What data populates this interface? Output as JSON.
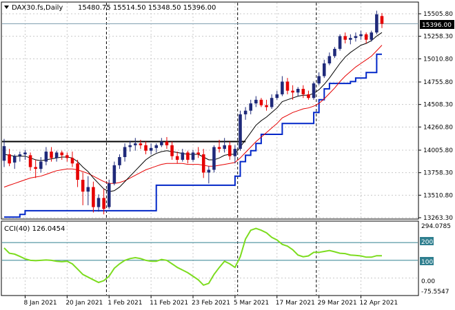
{
  "header": {
    "symbol": "DAX30.fs,Daily",
    "ohlc": "15480.75 15514.50 15348.50 15396.00"
  },
  "current_price_label": "15396.00",
  "indicator": {
    "label": "CCI(40) 126.0454",
    "max_label": "294.0785",
    "min_label": "-75.5547",
    "levels": [
      "200",
      "100",
      "0.00"
    ]
  },
  "colors": {
    "background": "#ffffff",
    "up_candle": "#1f2a7a",
    "down_candle": "#e60000",
    "fast_ma": "#000000",
    "slow_ma": "#e60000",
    "trailing_stop": "#0026c8",
    "cci": "#7cdc1e",
    "level_line": "#2f7f8f",
    "resistance": "#000000"
  },
  "chart_data": [
    {
      "type": "candlestick",
      "price_axis": [
        "15505.80",
        "15258.30",
        "15010.80",
        "14755.80",
        "14508.30",
        "14260.80",
        "14005.80",
        "13758.30",
        "13510.80",
        "13263.30"
      ],
      "ylim": [
        13263.3,
        15505.8
      ],
      "date_ticks": [
        "8 Jan 2021",
        "20 Jan 2021",
        "1 Feb 2021",
        "11 Feb 2021",
        "23 Feb 2021",
        "5 Mar 2021",
        "17 Mar 2021",
        "29 Mar 2021",
        "12 Apr 2021"
      ],
      "resistance_level": 14100,
      "last_price": 15396,
      "candles": [
        {
          "date": "2021-01-04",
          "o": 13890,
          "h": 14130,
          "l": 13820,
          "c": 14050
        },
        {
          "date": "2021-01-05",
          "o": 13960,
          "h": 14020,
          "l": 13830,
          "c": 13860
        },
        {
          "date": "2021-01-06",
          "o": 13870,
          "h": 13960,
          "l": 13800,
          "c": 13940
        },
        {
          "date": "2021-01-07",
          "o": 13940,
          "h": 13990,
          "l": 13880,
          "c": 13960
        },
        {
          "date": "2021-01-08",
          "o": 13960,
          "h": 14010,
          "l": 13900,
          "c": 13980
        },
        {
          "date": "2021-01-11",
          "o": 13950,
          "h": 13980,
          "l": 13780,
          "c": 13820
        },
        {
          "date": "2021-01-12",
          "o": 13820,
          "h": 13900,
          "l": 13700,
          "c": 13800
        },
        {
          "date": "2021-01-13",
          "o": 13800,
          "h": 13930,
          "l": 13760,
          "c": 13880
        },
        {
          "date": "2021-01-14",
          "o": 13880,
          "h": 14040,
          "l": 13840,
          "c": 13990
        },
        {
          "date": "2021-01-15",
          "o": 13990,
          "h": 14040,
          "l": 13880,
          "c": 13920
        },
        {
          "date": "2021-01-18",
          "o": 13920,
          "h": 14000,
          "l": 13880,
          "c": 13980
        },
        {
          "date": "2021-01-19",
          "o": 13980,
          "h": 14000,
          "l": 13900,
          "c": 13950
        },
        {
          "date": "2021-01-20",
          "o": 13950,
          "h": 13980,
          "l": 13880,
          "c": 13920
        },
        {
          "date": "2021-01-21",
          "o": 13920,
          "h": 13990,
          "l": 13820,
          "c": 13860
        },
        {
          "date": "2021-01-22",
          "o": 13860,
          "h": 13900,
          "l": 13600,
          "c": 13680
        },
        {
          "date": "2021-01-25",
          "o": 13680,
          "h": 13760,
          "l": 13400,
          "c": 13550
        },
        {
          "date": "2021-01-26",
          "o": 13550,
          "h": 13720,
          "l": 13400,
          "c": 13600
        },
        {
          "date": "2021-01-27",
          "o": 13600,
          "h": 13660,
          "l": 13320,
          "c": 13380
        },
        {
          "date": "2021-01-28",
          "o": 13380,
          "h": 13520,
          "l": 13330,
          "c": 13480
        },
        {
          "date": "2021-01-29",
          "o": 13480,
          "h": 13580,
          "l": 13300,
          "c": 13360
        },
        {
          "date": "2021-02-01",
          "o": 13380,
          "h": 13680,
          "l": 13360,
          "c": 13640
        },
        {
          "date": "2021-02-02",
          "o": 13640,
          "h": 13880,
          "l": 13620,
          "c": 13840
        },
        {
          "date": "2021-02-03",
          "o": 13840,
          "h": 13960,
          "l": 13800,
          "c": 13930
        },
        {
          "date": "2021-02-04",
          "o": 13930,
          "h": 14080,
          "l": 13880,
          "c": 14040
        },
        {
          "date": "2021-02-05",
          "o": 14040,
          "h": 14110,
          "l": 13990,
          "c": 14060
        },
        {
          "date": "2021-02-08",
          "o": 14060,
          "h": 14140,
          "l": 14000,
          "c": 14080
        },
        {
          "date": "2021-02-09",
          "o": 14080,
          "h": 14120,
          "l": 14020,
          "c": 14060
        },
        {
          "date": "2021-02-10",
          "o": 14060,
          "h": 14100,
          "l": 13960,
          "c": 14000
        },
        {
          "date": "2021-02-11",
          "o": 14000,
          "h": 14080,
          "l": 13960,
          "c": 14030
        },
        {
          "date": "2021-02-12",
          "o": 14030,
          "h": 14080,
          "l": 13980,
          "c": 14060
        },
        {
          "date": "2021-02-15",
          "o": 14060,
          "h": 14140,
          "l": 14040,
          "c": 14100
        },
        {
          "date": "2021-02-16",
          "o": 14100,
          "h": 14150,
          "l": 14020,
          "c": 14060
        },
        {
          "date": "2021-02-17",
          "o": 14060,
          "h": 14100,
          "l": 13900,
          "c": 13940
        },
        {
          "date": "2021-02-18",
          "o": 13940,
          "h": 13990,
          "l": 13860,
          "c": 13900
        },
        {
          "date": "2021-02-19",
          "o": 13900,
          "h": 14020,
          "l": 13880,
          "c": 13980
        },
        {
          "date": "2021-02-22",
          "o": 13980,
          "h": 14000,
          "l": 13860,
          "c": 13900
        },
        {
          "date": "2021-02-23",
          "o": 13900,
          "h": 14010,
          "l": 13880,
          "c": 13980
        },
        {
          "date": "2021-02-24",
          "o": 13980,
          "h": 14040,
          "l": 13920,
          "c": 13960
        },
        {
          "date": "2021-02-25",
          "o": 13960,
          "h": 14020,
          "l": 13700,
          "c": 13760
        },
        {
          "date": "2021-02-26",
          "o": 13760,
          "h": 13830,
          "l": 13640,
          "c": 13790
        },
        {
          "date": "2021-03-01",
          "o": 13790,
          "h": 14060,
          "l": 13760,
          "c": 14040
        },
        {
          "date": "2021-03-02",
          "o": 14040,
          "h": 14120,
          "l": 13980,
          "c": 14020
        },
        {
          "date": "2021-03-03",
          "o": 14020,
          "h": 14140,
          "l": 13980,
          "c": 14060
        },
        {
          "date": "2021-03-04",
          "o": 14060,
          "h": 14100,
          "l": 13900,
          "c": 13940
        },
        {
          "date": "2021-03-05",
          "o": 13940,
          "h": 14060,
          "l": 13860,
          "c": 14020
        },
        {
          "date": "2021-03-08",
          "o": 14020,
          "h": 14440,
          "l": 14000,
          "c": 14400
        },
        {
          "date": "2021-03-09",
          "o": 14400,
          "h": 14480,
          "l": 14340,
          "c": 14440
        },
        {
          "date": "2021-03-10",
          "o": 14440,
          "h": 14560,
          "l": 14400,
          "c": 14520
        },
        {
          "date": "2021-03-11",
          "o": 14520,
          "h": 14600,
          "l": 14480,
          "c": 14560
        },
        {
          "date": "2021-03-12",
          "o": 14560,
          "h": 14580,
          "l": 14480,
          "c": 14500
        },
        {
          "date": "2021-03-15",
          "o": 14500,
          "h": 14560,
          "l": 14440,
          "c": 14480
        },
        {
          "date": "2021-03-16",
          "o": 14480,
          "h": 14620,
          "l": 14460,
          "c": 14580
        },
        {
          "date": "2021-03-17",
          "o": 14580,
          "h": 14660,
          "l": 14560,
          "c": 14620
        },
        {
          "date": "2021-03-18",
          "o": 14620,
          "h": 14820,
          "l": 14600,
          "c": 14760
        },
        {
          "date": "2021-03-19",
          "o": 14760,
          "h": 14800,
          "l": 14620,
          "c": 14660
        },
        {
          "date": "2021-03-22",
          "o": 14660,
          "h": 14720,
          "l": 14560,
          "c": 14640
        },
        {
          "date": "2021-03-23",
          "o": 14640,
          "h": 14700,
          "l": 14600,
          "c": 14680
        },
        {
          "date": "2021-03-24",
          "o": 14680,
          "h": 14720,
          "l": 14580,
          "c": 14620
        },
        {
          "date": "2021-03-25",
          "o": 14620,
          "h": 14660,
          "l": 14560,
          "c": 14580
        },
        {
          "date": "2021-03-26",
          "o": 14580,
          "h": 14760,
          "l": 14560,
          "c": 14740
        },
        {
          "date": "2021-03-29",
          "o": 14740,
          "h": 14860,
          "l": 14720,
          "c": 14820
        },
        {
          "date": "2021-03-30",
          "o": 14820,
          "h": 15000,
          "l": 14800,
          "c": 14960
        },
        {
          "date": "2021-03-31",
          "o": 14960,
          "h": 15080,
          "l": 14940,
          "c": 15040
        },
        {
          "date": "2021-04-01",
          "o": 15040,
          "h": 15140,
          "l": 15020,
          "c": 15120
        },
        {
          "date": "2021-04-06",
          "o": 15120,
          "h": 15280,
          "l": 15100,
          "c": 15260
        },
        {
          "date": "2021-04-07",
          "o": 15260,
          "h": 15300,
          "l": 15180,
          "c": 15220
        },
        {
          "date": "2021-04-08",
          "o": 15220,
          "h": 15280,
          "l": 15170,
          "c": 15240
        },
        {
          "date": "2021-04-09",
          "o": 15240,
          "h": 15300,
          "l": 15200,
          "c": 15260
        },
        {
          "date": "2021-04-12",
          "o": 15260,
          "h": 15320,
          "l": 15220,
          "c": 15280
        },
        {
          "date": "2021-04-13",
          "o": 15280,
          "h": 15300,
          "l": 15180,
          "c": 15220
        },
        {
          "date": "2021-04-14",
          "o": 15220,
          "h": 15320,
          "l": 15200,
          "c": 15300
        },
        {
          "date": "2021-04-15",
          "o": 15300,
          "h": 15540,
          "l": 15280,
          "c": 15500
        },
        {
          "date": "2021-04-16",
          "o": 15480.75,
          "h": 15514.5,
          "l": 15348.5,
          "c": 15396
        }
      ],
      "fast_ma": [
        13960,
        13950,
        13940,
        13940,
        13940,
        13920,
        13900,
        13890,
        13900,
        13910,
        13920,
        13930,
        13930,
        13920,
        13880,
        13820,
        13770,
        13700,
        13640,
        13580,
        13550,
        13560,
        13600,
        13660,
        13720,
        13780,
        13840,
        13900,
        13940,
        13970,
        13990,
        14000,
        13990,
        13980,
        13970,
        13960,
        13960,
        13960,
        13930,
        13900,
        13900,
        13920,
        13950,
        13960,
        13960,
        14040,
        14120,
        14200,
        14280,
        14330,
        14370,
        14420,
        14470,
        14540,
        14560,
        14580,
        14600,
        14610,
        14610,
        14630,
        14670,
        14730,
        14800,
        14880,
        14960,
        15030,
        15080,
        15120,
        15160,
        15180,
        15210,
        15260,
        15300
      ],
      "slow_ma": [
        13600,
        13620,
        13640,
        13660,
        13680,
        13700,
        13710,
        13720,
        13740,
        13760,
        13780,
        13790,
        13800,
        13800,
        13790,
        13770,
        13750,
        13720,
        13690,
        13660,
        13640,
        13640,
        13650,
        13670,
        13700,
        13730,
        13760,
        13790,
        13810,
        13830,
        13850,
        13860,
        13860,
        13860,
        13860,
        13850,
        13850,
        13850,
        13840,
        13830,
        13830,
        13840,
        13850,
        13860,
        13870,
        13920,
        13980,
        14040,
        14100,
        14150,
        14200,
        14250,
        14300,
        14360,
        14390,
        14420,
        14440,
        14460,
        14470,
        14490,
        14520,
        14570,
        14630,
        14690,
        14760,
        14820,
        14870,
        14920,
        14960,
        15000,
        15040,
        15100,
        15160
      ],
      "trailing_stop": [
        13270,
        13270,
        13270,
        13300,
        13340,
        13340,
        13340,
        13340,
        13340,
        13340,
        13340,
        13340,
        13340,
        13340,
        13340,
        13340,
        13340,
        13340,
        13340,
        13340,
        13340,
        13340,
        13340,
        13340,
        13340,
        13340,
        13340,
        13340,
        13340,
        13620,
        13620,
        13620,
        13620,
        13620,
        13620,
        13620,
        13620,
        13620,
        13620,
        13620,
        13620,
        13620,
        13620,
        13620,
        13720,
        13880,
        13950,
        14000,
        14080,
        14180,
        14180,
        14180,
        14180,
        14300,
        14300,
        14300,
        14300,
        14300,
        14300,
        14420,
        14560,
        14680,
        14740,
        14740,
        14740,
        14740,
        14760,
        14800,
        14800,
        14860,
        14860,
        15060,
        15060
      ]
    },
    {
      "type": "line",
      "name": "CCI(40)",
      "ylim": [
        -75.5547,
        294.0785
      ],
      "levels": [
        200,
        100,
        0
      ],
      "values": [
        170,
        140,
        135,
        122,
        108,
        100,
        98,
        100,
        102,
        100,
        95,
        92,
        95,
        80,
        50,
        20,
        5,
        -10,
        -25,
        -15,
        10,
        55,
        80,
        100,
        110,
        115,
        110,
        100,
        95,
        95,
        105,
        100,
        80,
        60,
        45,
        30,
        10,
        -10,
        -40,
        -30,
        20,
        60,
        95,
        80,
        60,
        120,
        220,
        270,
        280,
        270,
        255,
        230,
        215,
        190,
        180,
        160,
        130,
        120,
        125,
        145,
        145,
        150,
        155,
        148,
        140,
        138,
        130,
        128,
        125,
        118,
        118,
        126,
        126
      ]
    }
  ]
}
